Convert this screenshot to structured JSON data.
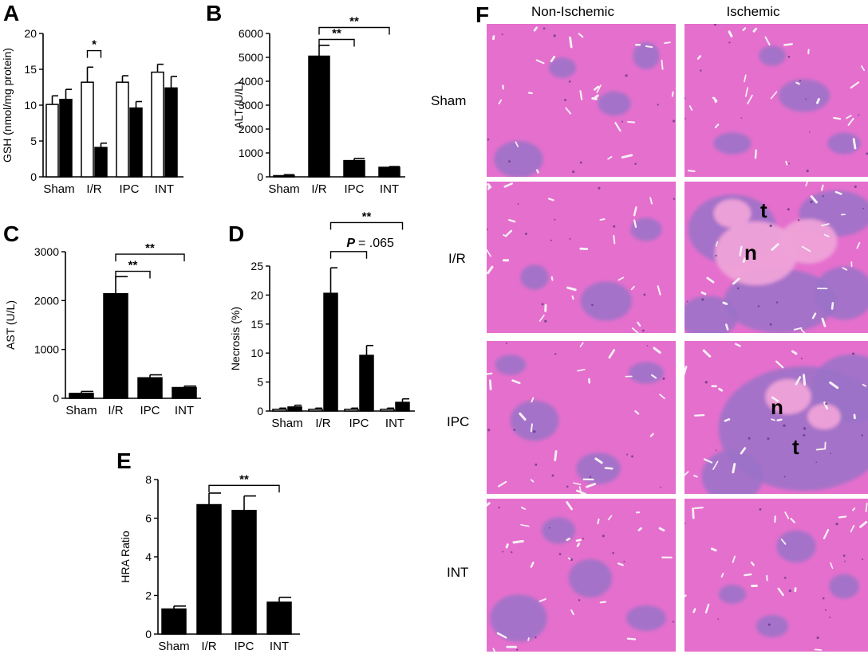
{
  "panels": {
    "A": "A",
    "B": "B",
    "C": "C",
    "D": "D",
    "E": "E",
    "F": "F"
  },
  "chart_data": [
    {
      "id": "A",
      "type": "bar",
      "ylabel": "GSH (nmol/mg protein)",
      "ylim": [
        0,
        20
      ],
      "yticks": [
        0,
        5,
        10,
        15,
        20
      ],
      "categories": [
        "Sham",
        "I/R",
        "IPC",
        "INT"
      ],
      "series": [
        {
          "values": [
            10.1,
            13.2,
            13.2,
            14.6
          ],
          "errors": [
            1.2,
            2.1,
            0.9,
            1.1
          ],
          "color": "#ffffff"
        },
        {
          "values": [
            10.8,
            4.1,
            9.6,
            12.4
          ],
          "errors": [
            1.4,
            0.6,
            0.9,
            1.6
          ],
          "color": "#000000"
        }
      ],
      "annotations": [
        {
          "text": "*",
          "from": [
            1,
            0
          ],
          "to": [
            1,
            1
          ],
          "level": 17.6
        }
      ]
    },
    {
      "id": "B",
      "type": "bar",
      "ylabel": "ALT (U/L)",
      "ylim": [
        0,
        6000
      ],
      "yticks": [
        0,
        1000,
        2000,
        3000,
        4000,
        5000,
        6000
      ],
      "categories": [
        "Sham",
        "I/R",
        "IPC",
        "INT"
      ],
      "series": [
        {
          "values": [
            50,
            5050,
            680,
            400
          ],
          "errors": [
            40,
            450,
            90,
            30
          ],
          "color": "#000000"
        }
      ],
      "annotations": [
        {
          "text": "**",
          "from": 1,
          "to": 2,
          "level": 5750
        },
        {
          "text": "**",
          "from": 1,
          "to": 3,
          "level": 6250
        }
      ]
    },
    {
      "id": "C",
      "type": "bar",
      "ylabel": "AST (U/L)",
      "ylim": [
        0,
        3000
      ],
      "yticks": [
        0,
        1000,
        2000,
        3000
      ],
      "categories": [
        "Sham",
        "I/R",
        "IPC",
        "INT"
      ],
      "series": [
        {
          "values": [
            100,
            2140,
            420,
            220
          ],
          "errors": [
            40,
            350,
            60,
            30
          ],
          "color": "#000000"
        }
      ],
      "annotations": [
        {
          "text": "**",
          "from": 1,
          "to": 2,
          "level": 2600
        },
        {
          "text": "**",
          "from": 1,
          "to": 3,
          "level": 2950
        }
      ]
    },
    {
      "id": "D",
      "type": "bar",
      "ylabel": "Necrosis (%)",
      "ylim": [
        0,
        25
      ],
      "yticks": [
        0,
        5,
        10,
        15,
        20,
        25
      ],
      "categories": [
        "Sham",
        "I/R",
        "IPC",
        "INT"
      ],
      "series": [
        {
          "values": [
            0.3,
            0.3,
            0.3,
            0.3
          ],
          "errors": [
            0.2,
            0.2,
            0.2,
            0.2
          ],
          "color": "#ffffff"
        },
        {
          "values": [
            0.7,
            20.3,
            9.6,
            1.5
          ],
          "errors": [
            0.3,
            4.4,
            1.7,
            0.6
          ],
          "color": "#000000"
        }
      ],
      "annotations": [
        {
          "text": ".065",
          "prefix": "P =",
          "from": 1,
          "to": 2,
          "level": 27.5
        },
        {
          "text": "**",
          "from": 1,
          "to": 3,
          "level": 32.5
        }
      ]
    },
    {
      "id": "E",
      "type": "bar",
      "ylabel": "HRA Ratio",
      "ylim": [
        0,
        8
      ],
      "yticks": [
        0,
        2,
        4,
        6,
        8
      ],
      "categories": [
        "Sham",
        "I/R",
        "IPC",
        "INT"
      ],
      "series": [
        {
          "values": [
            1.3,
            6.7,
            6.4,
            1.65
          ],
          "errors": [
            0.15,
            0.6,
            0.75,
            0.25
          ],
          "color": "#000000"
        }
      ],
      "annotations": [
        {
          "text": "**",
          "from": 1,
          "to": 3,
          "level": 7.7
        }
      ]
    }
  ],
  "histology": {
    "columns": [
      "Non-Ischemic",
      "Ischemic"
    ],
    "rows": [
      "Sham",
      "I/R",
      "IPC",
      "INT"
    ],
    "tissue_labels": [
      {
        "row": 1,
        "col": 1,
        "text": "t"
      },
      {
        "row": 1,
        "col": 1,
        "text": "n"
      },
      {
        "row": 2,
        "col": 1,
        "text": "n"
      },
      {
        "row": 2,
        "col": 1,
        "text": "t"
      }
    ],
    "colors": {
      "tissue": "#e56fcd",
      "lobule": "#9a73c8",
      "necrosis": "#eea2d8",
      "vessel": "#f6f0f6"
    }
  }
}
